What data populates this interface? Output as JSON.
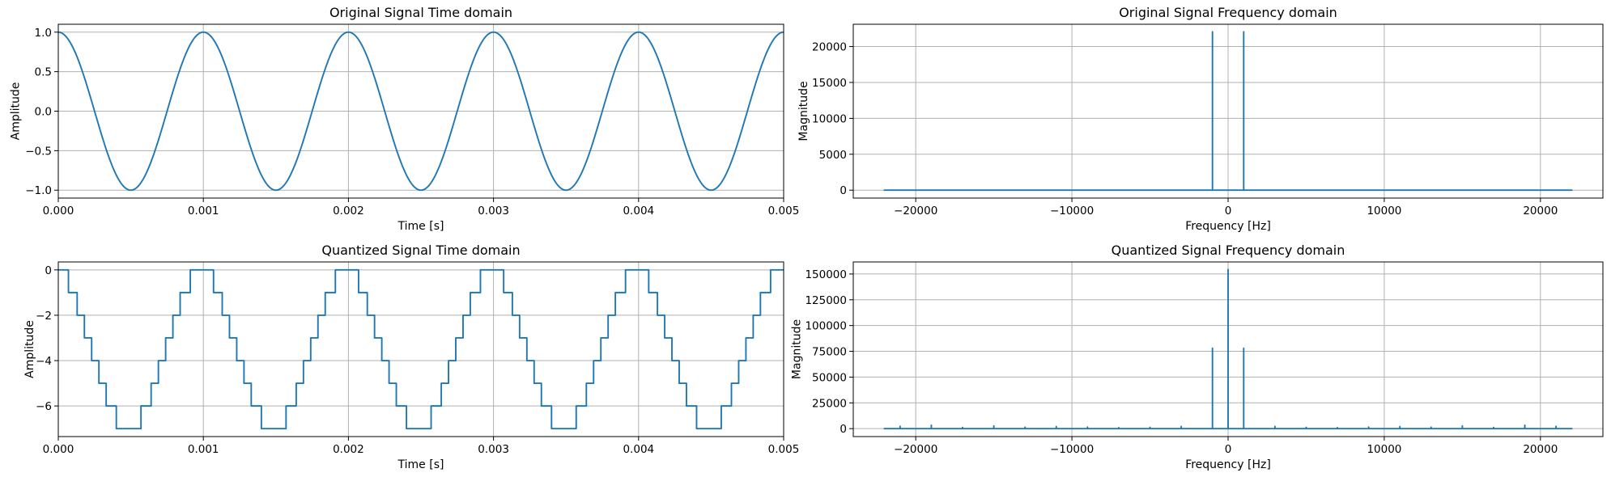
{
  "chart_data": [
    {
      "id": "orig-time",
      "type": "line",
      "title": "Original Signal Time domain",
      "xlabel": "Time [s]",
      "ylabel": "Amplitude",
      "xlim": [
        0,
        0.005
      ],
      "ylim": [
        -1.1,
        1.1
      ],
      "xticks": [
        0,
        0.001,
        0.002,
        0.003,
        0.004,
        0.005
      ],
      "xtick_labels": [
        "0.000",
        "0.001",
        "0.002",
        "0.003",
        "0.004",
        "0.005"
      ],
      "yticks": [
        -1.0,
        -0.5,
        0.0,
        0.5,
        1.0
      ],
      "ytick_labels": [
        "−1.0",
        "−0.5",
        "0.0",
        "0.5",
        "1.0"
      ],
      "grid": true,
      "color": "#1f77b4",
      "series": [
        {
          "kind": "cosine",
          "frequency_hz": 1000,
          "amplitude": 1,
          "points": [
            [
              0,
              1
            ],
            [
              0.00025,
              0
            ],
            [
              0.0005,
              -1
            ],
            [
              0.00075,
              0
            ],
            [
              0.001,
              1
            ],
            [
              0.0015,
              -1
            ],
            [
              0.002,
              1
            ],
            [
              0.0025,
              -1
            ],
            [
              0.003,
              1
            ],
            [
              0.0035,
              -1
            ],
            [
              0.004,
              1
            ],
            [
              0.0045,
              -1
            ],
            [
              0.005,
              1
            ]
          ]
        }
      ]
    },
    {
      "id": "orig-freq",
      "type": "line",
      "title": "Original Signal Frequency domain",
      "xlabel": "Frequency [Hz]",
      "ylabel": "Magnitude",
      "xlim": [
        -24000,
        24000
      ],
      "ylim": [
        -1100,
        23100
      ],
      "xticks": [
        -20000,
        -10000,
        0,
        10000,
        20000
      ],
      "xtick_labels": [
        "−20000",
        "−10000",
        "0",
        "10000",
        "20000"
      ],
      "yticks": [
        0,
        5000,
        10000,
        15000,
        20000
      ],
      "ytick_labels": [
        "0",
        "5000",
        "10000",
        "15000",
        "20000"
      ],
      "grid": true,
      "color": "#1f77b4",
      "series": [
        {
          "points": [
            [
              -22050,
              0
            ],
            [
              -1000,
              0
            ],
            [
              -1000,
              22050
            ],
            [
              -1000,
              0
            ],
            [
              1000,
              0
            ],
            [
              1000,
              22050
            ],
            [
              1000,
              0
            ],
            [
              22050,
              0
            ]
          ]
        }
      ]
    },
    {
      "id": "quant-time",
      "type": "line",
      "title": "Quantized Signal Time domain",
      "xlabel": "Time [s]",
      "ylabel": "Amplitude",
      "xlim": [
        0,
        0.005
      ],
      "ylim": [
        -7.35,
        0.35
      ],
      "xticks": [
        0,
        0.001,
        0.002,
        0.003,
        0.004,
        0.005
      ],
      "xtick_labels": [
        "0.000",
        "0.001",
        "0.002",
        "0.003",
        "0.004",
        "0.005"
      ],
      "yticks": [
        -6,
        -4,
        -2,
        0
      ],
      "ytick_labels": [
        "−6",
        "−4",
        "−2",
        "0"
      ],
      "grid": true,
      "color": "#1f77b4",
      "series": [
        {
          "kind": "quantized-cosine",
          "frequency_hz": 1000,
          "levels": [
            0,
            -1,
            -2,
            -3,
            -4,
            -5,
            -6,
            -7
          ],
          "points": [
            [
              0,
              0
            ],
            [
              7e-05,
              0
            ],
            [
              7e-05,
              -1
            ],
            [
              0.00013,
              -1
            ],
            [
              0.00013,
              -2
            ],
            [
              0.00018,
              -2
            ],
            [
              0.00018,
              -3
            ],
            [
              0.00023,
              -3
            ],
            [
              0.00023,
              -4
            ],
            [
              0.00028,
              -4
            ],
            [
              0.00028,
              -5
            ],
            [
              0.00033,
              -5
            ],
            [
              0.00033,
              -6
            ],
            [
              0.0004,
              -6
            ],
            [
              0.0004,
              -7
            ],
            [
              0.00057,
              -7
            ],
            [
              0.00057,
              -6
            ],
            [
              0.00064,
              -6
            ],
            [
              0.00064,
              -5
            ],
            [
              0.00069,
              -5
            ],
            [
              0.00069,
              -4
            ],
            [
              0.00074,
              -4
            ],
            [
              0.00074,
              -3
            ],
            [
              0.00079,
              -3
            ],
            [
              0.00079,
              -2
            ],
            [
              0.00084,
              -2
            ],
            [
              0.00084,
              -1
            ],
            [
              0.00091,
              -1
            ],
            [
              0.00091,
              0
            ],
            [
              0.001,
              0
            ]
          ]
        }
      ]
    },
    {
      "id": "quant-freq",
      "type": "line",
      "title": "Quantized Signal Frequency domain",
      "xlabel": "Frequency [Hz]",
      "ylabel": "Magnitude",
      "xlim": [
        -24000,
        24000
      ],
      "ylim": [
        -7700,
        161700
      ],
      "xticks": [
        -20000,
        -10000,
        0,
        10000,
        20000
      ],
      "xtick_labels": [
        "−20000",
        "−10000",
        "0",
        "10000",
        "20000"
      ],
      "yticks": [
        0,
        25000,
        50000,
        75000,
        100000,
        125000,
        150000
      ],
      "ytick_labels": [
        "0",
        "25000",
        "50000",
        "75000",
        "100000",
        "125000",
        "150000"
      ],
      "grid": true,
      "color": "#1f77b4",
      "series": [
        {
          "spikes": [
            [
              -21000,
              2200
            ],
            [
              -19000,
              3300
            ],
            [
              -17000,
              1200
            ],
            [
              -15000,
              2600
            ],
            [
              -13000,
              1500
            ],
            [
              -11000,
              2000
            ],
            [
              -9000,
              1600
            ],
            [
              -7000,
              1000
            ],
            [
              -5000,
              1300
            ],
            [
              -3000,
              2100
            ],
            [
              -1000,
              78000
            ],
            [
              0,
              154350
            ],
            [
              1000,
              78000
            ],
            [
              3000,
              2100
            ],
            [
              5000,
              1300
            ],
            [
              7000,
              1000
            ],
            [
              9000,
              1600
            ],
            [
              11000,
              2000
            ],
            [
              13000,
              1500
            ],
            [
              15000,
              2600
            ],
            [
              17000,
              1200
            ],
            [
              19000,
              3300
            ],
            [
              21000,
              2200
            ]
          ],
          "xrange": [
            -22050,
            22050
          ]
        }
      ]
    }
  ]
}
